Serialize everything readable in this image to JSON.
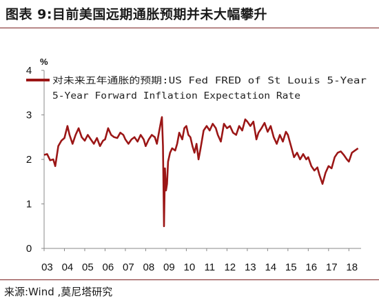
{
  "header": {
    "title": "图表 9:目前美国远期通胀预期并未大幅攀升"
  },
  "footer": {
    "source": "来源:Wind ,莫尼塔研究"
  },
  "chart_data": {
    "type": "line",
    "title": "",
    "xlabel": "",
    "ylabel": "%",
    "ylim": [
      0,
      4
    ],
    "yticks": [
      "0",
      "1",
      "2",
      "3",
      "4"
    ],
    "x_tick_labels": [
      "03",
      "04",
      "05",
      "06",
      "07",
      "08",
      "09",
      "10",
      "11",
      "12",
      "13",
      "14",
      "15",
      "16",
      "17",
      "18"
    ],
    "xlim": [
      2003.0,
      2018.6
    ],
    "grid": false,
    "legend": {
      "placement": "top-left",
      "line1": "对未来五年通胀的预期:US Fed FRED of St Louis 5-Year",
      "line2": "5-Year Forward Inflation Expectation Rate"
    },
    "color": "#9b1616",
    "series": [
      {
        "name": "对未来五年通胀的预期:US Fed FRED of St Louis 5-Year 5-Year Forward Inflation Expectation Rate",
        "x": [
          2003.0,
          2003.15,
          2003.3,
          2003.45,
          2003.55,
          2003.7,
          2003.85,
          2004.0,
          2004.15,
          2004.25,
          2004.4,
          2004.55,
          2004.7,
          2004.85,
          2005.0,
          2005.15,
          2005.3,
          2005.45,
          2005.6,
          2005.75,
          2005.9,
          2006.0,
          2006.15,
          2006.3,
          2006.45,
          2006.6,
          2006.75,
          2006.9,
          2007.0,
          2007.15,
          2007.3,
          2007.45,
          2007.6,
          2007.75,
          2007.9,
          2008.0,
          2008.15,
          2008.3,
          2008.45,
          2008.55,
          2008.65,
          2008.75,
          2008.8,
          2008.85,
          2008.9,
          2008.95,
          2009.0,
          2009.05,
          2009.1,
          2009.2,
          2009.3,
          2009.45,
          2009.55,
          2009.65,
          2009.8,
          2009.9,
          2010.0,
          2010.1,
          2010.2,
          2010.3,
          2010.4,
          2010.5,
          2010.6,
          2010.7,
          2010.85,
          2011.0,
          2011.15,
          2011.3,
          2011.45,
          2011.55,
          2011.7,
          2011.85,
          2012.0,
          2012.15,
          2012.3,
          2012.45,
          2012.6,
          2012.75,
          2012.9,
          2013.0,
          2013.15,
          2013.3,
          2013.45,
          2013.55,
          2013.7,
          2013.85,
          2014.0,
          2014.15,
          2014.3,
          2014.45,
          2014.6,
          2014.75,
          2014.9,
          2015.0,
          2015.15,
          2015.3,
          2015.45,
          2015.6,
          2015.75,
          2015.9,
          2016.0,
          2016.15,
          2016.3,
          2016.45,
          2016.55,
          2016.7,
          2016.85,
          2017.0,
          2017.15,
          2017.3,
          2017.45,
          2017.6,
          2017.75,
          2017.9,
          2018.0,
          2018.15,
          2018.3,
          2018.45
        ],
        "y": [
          2.1,
          2.12,
          1.98,
          2.0,
          1.85,
          2.3,
          2.42,
          2.48,
          2.75,
          2.55,
          2.35,
          2.55,
          2.7,
          2.5,
          2.42,
          2.55,
          2.45,
          2.35,
          2.48,
          2.3,
          2.42,
          2.45,
          2.7,
          2.55,
          2.5,
          2.48,
          2.6,
          2.55,
          2.45,
          2.35,
          2.45,
          2.5,
          2.4,
          2.55,
          2.45,
          2.3,
          2.45,
          2.55,
          2.5,
          2.35,
          2.6,
          2.85,
          2.95,
          2.3,
          0.5,
          1.8,
          1.3,
          1.45,
          1.95,
          2.15,
          2.25,
          2.2,
          2.35,
          2.6,
          2.45,
          2.7,
          2.75,
          2.55,
          2.5,
          2.3,
          2.15,
          2.35,
          2.0,
          2.25,
          2.65,
          2.75,
          2.65,
          2.8,
          2.7,
          2.55,
          2.4,
          2.8,
          2.7,
          2.75,
          2.6,
          2.55,
          2.75,
          2.65,
          2.9,
          2.85,
          2.75,
          2.85,
          2.45,
          2.6,
          2.7,
          2.82,
          2.62,
          2.75,
          2.5,
          2.35,
          2.55,
          2.4,
          2.62,
          2.55,
          2.3,
          2.05,
          2.15,
          2.0,
          2.12,
          2.0,
          2.05,
          1.85,
          1.75,
          1.82,
          1.65,
          1.45,
          1.7,
          1.85,
          1.8,
          2.05,
          2.15,
          2.18,
          2.1,
          2.0,
          1.95,
          2.15,
          2.2,
          2.25
        ]
      }
    ]
  }
}
